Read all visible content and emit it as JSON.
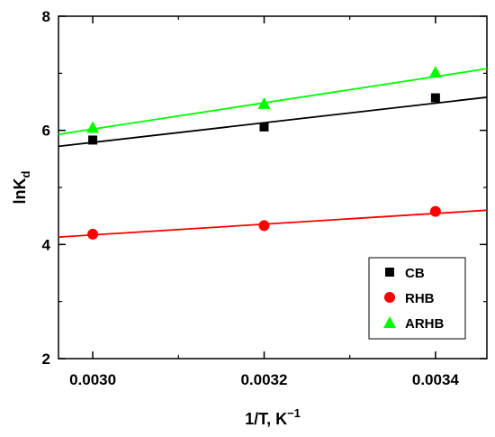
{
  "chart_data": {
    "type": "scatter",
    "xlabel": "1/T, K",
    "xlabel_sup": "−1",
    "ylabel": "lnK",
    "ylabel_sub": "d",
    "xlim": [
      0.00296,
      0.00346
    ],
    "ylim": [
      2,
      8
    ],
    "x_ticks": [
      "0.0030",
      "0.0032",
      "0.0034"
    ],
    "x_tick_values": [
      0.003,
      0.0032,
      0.0034
    ],
    "y_ticks": [
      "2",
      "4",
      "6",
      "8"
    ],
    "y_tick_values": [
      2,
      4,
      6,
      8
    ],
    "legend_position": "bottom-right",
    "grid": false,
    "series": [
      {
        "name": "CB",
        "marker": "square",
        "color": "#000000",
        "x": [
          0.003,
          0.0032,
          0.0034
        ],
        "y": [
          5.83,
          6.06,
          6.57
        ],
        "fit_line": {
          "x": [
            0.00296,
            0.00346
          ],
          "y": [
            5.72,
            6.58
          ]
        }
      },
      {
        "name": "RHB",
        "marker": "circle",
        "color": "#ff0000",
        "x": [
          0.003,
          0.0032,
          0.0034
        ],
        "y": [
          4.18,
          4.33,
          4.58
        ],
        "fit_line": {
          "x": [
            0.00296,
            0.00346
          ],
          "y": [
            4.13,
            4.6
          ]
        }
      },
      {
        "name": "ARHB",
        "marker": "triangle",
        "color": "#00ff00",
        "x": [
          0.003,
          0.0032,
          0.0034
        ],
        "y": [
          6.05,
          6.47,
          7.02
        ],
        "fit_line": {
          "x": [
            0.00296,
            0.00346
          ],
          "y": [
            5.93,
            7.08
          ]
        }
      }
    ]
  }
}
